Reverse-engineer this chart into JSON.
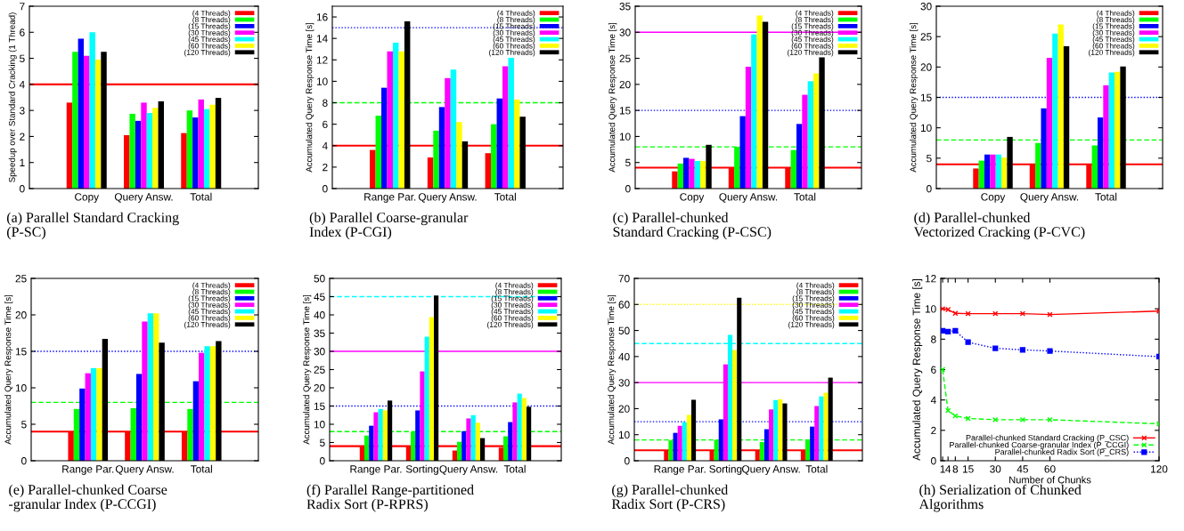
{
  "chart_data": [
    {
      "type": "bar",
      "title": "(a) Parallel Standard Cracking\n(P-SC)",
      "ylabel": "Speedup over Standard Cracking (1 Thread)",
      "categories": [
        "Copy",
        "Query Answ.",
        "Total"
      ],
      "ylim": [
        0,
        7
      ],
      "yticks": [
        0,
        1,
        2,
        3,
        4,
        5,
        6,
        7
      ],
      "legend": "top right",
      "series": [
        {
          "name": "(4 Threads)",
          "color": "#ff0000",
          "values": [
            3.3,
            2.05,
            2.13
          ]
        },
        {
          "name": "(8 Threads)",
          "color": "#00ff00",
          "values": [
            5.25,
            2.87,
            3.0
          ]
        },
        {
          "name": "(15 Threads)",
          "color": "#0000ff",
          "values": [
            5.75,
            2.6,
            2.73
          ]
        },
        {
          "name": "(30 Threads)",
          "color": "#ff00ff",
          "values": [
            5.1,
            3.3,
            3.42
          ]
        },
        {
          "name": "(45 Threads)",
          "color": "#00ffff",
          "values": [
            6.0,
            2.9,
            3.05
          ]
        },
        {
          "name": "(60 Threads)",
          "color": "#ffff00",
          "values": [
            4.95,
            3.1,
            3.22
          ]
        },
        {
          "name": "(120 Threads)",
          "color": "#000000",
          "values": [
            5.25,
            3.35,
            3.48
          ]
        }
      ],
      "ref_lines": [
        {
          "axis": "y",
          "value": 4,
          "color": "#ff0000",
          "line_style": "solid"
        }
      ]
    },
    {
      "type": "bar",
      "title": "(b) Parallel Coarse-granular\nIndex (P-CGI)",
      "ylabel": "Accumulated Query Response Time [s]",
      "categories": [
        "Range Par.",
        "Query Answ.",
        "Total"
      ],
      "ylim": [
        0,
        17
      ],
      "yticks": [
        0,
        2,
        4,
        6,
        8,
        10,
        12,
        14,
        16
      ],
      "legend": "top right",
      "series": [
        {
          "name": "(4 Threads)",
          "color": "#ff0000",
          "values": [
            3.6,
            2.9,
            3.3
          ]
        },
        {
          "name": "(8 Threads)",
          "color": "#00ff00",
          "values": [
            6.8,
            5.4,
            6.0
          ]
        },
        {
          "name": "(15 Threads)",
          "color": "#0000ff",
          "values": [
            9.4,
            7.6,
            8.4
          ]
        },
        {
          "name": "(30 Threads)",
          "color": "#ff00ff",
          "values": [
            12.8,
            10.3,
            11.4
          ]
        },
        {
          "name": "(45 Threads)",
          "color": "#00ffff",
          "values": [
            13.6,
            11.1,
            12.2
          ]
        },
        {
          "name": "(60 Threads)",
          "color": "#ffff00",
          "values": [
            12.8,
            6.2,
            8.3
          ]
        },
        {
          "name": "(120 Threads)",
          "color": "#000000",
          "values": [
            15.6,
            4.4,
            6.7
          ]
        }
      ],
      "ref_lines": [
        {
          "axis": "y",
          "value": 4,
          "color": "#ff0000",
          "line_style": "solid"
        },
        {
          "axis": "y",
          "value": 8,
          "color": "#00ff00",
          "line_style": "dashed"
        },
        {
          "axis": "y",
          "value": 15,
          "color": "#0000ff",
          "line_style": "dotted"
        }
      ]
    },
    {
      "type": "bar",
      "title": "(c) Parallel-chunked\nStandard Cracking (P-CSC)",
      "ylabel": "Accumulated Query Response Time [s]",
      "categories": [
        "Copy",
        "Query Answ.",
        "Total"
      ],
      "ylim": [
        0,
        35
      ],
      "yticks": [
        0,
        5,
        10,
        15,
        20,
        25,
        30,
        35
      ],
      "legend": "top right",
      "series": [
        {
          "name": "(4 Threads)",
          "color": "#ff0000",
          "values": [
            3.3,
            4.0,
            4.0
          ]
        },
        {
          "name": "(8 Threads)",
          "color": "#00ff00",
          "values": [
            4.8,
            8.0,
            7.4
          ]
        },
        {
          "name": "(15 Threads)",
          "color": "#0000ff",
          "values": [
            5.9,
            13.9,
            12.4
          ]
        },
        {
          "name": "(30 Threads)",
          "color": "#ff00ff",
          "values": [
            5.7,
            23.4,
            18.0
          ]
        },
        {
          "name": "(45 Threads)",
          "color": "#00ffff",
          "values": [
            5.3,
            29.6,
            20.6
          ]
        },
        {
          "name": "(60 Threads)",
          "color": "#ffff00",
          "values": [
            5.3,
            33.2,
            22.1
          ]
        },
        {
          "name": "(120 Threads)",
          "color": "#000000",
          "values": [
            8.4,
            32.0,
            25.2
          ]
        }
      ],
      "ref_lines": [
        {
          "axis": "y",
          "value": 4,
          "color": "#ff0000",
          "line_style": "solid"
        },
        {
          "axis": "y",
          "value": 8,
          "color": "#00ff00",
          "line_style": "dashed"
        },
        {
          "axis": "y",
          "value": 15,
          "color": "#0000ff",
          "line_style": "dotted"
        },
        {
          "axis": "y",
          "value": 30,
          "color": "#ff00ff",
          "line_style": "solid"
        }
      ]
    },
    {
      "type": "bar",
      "title": "(d) Parallel-chunked\nVectorized Cracking (P-CVC)",
      "ylabel": "Accumulated Query Response Time [s]",
      "categories": [
        "Copy",
        "Query Answ.",
        "Total"
      ],
      "ylim": [
        0,
        30
      ],
      "yticks": [
        0,
        5,
        10,
        15,
        20,
        25,
        30
      ],
      "legend": "top right",
      "series": [
        {
          "name": "(4 Threads)",
          "color": "#ff0000",
          "values": [
            3.3,
            4.0,
            4.0
          ]
        },
        {
          "name": "(8 Threads)",
          "color": "#00ff00",
          "values": [
            4.6,
            7.5,
            7.1
          ]
        },
        {
          "name": "(15 Threads)",
          "color": "#0000ff",
          "values": [
            5.6,
            13.2,
            11.7
          ]
        },
        {
          "name": "(30 Threads)",
          "color": "#ff00ff",
          "values": [
            5.6,
            21.5,
            17.0
          ]
        },
        {
          "name": "(45 Threads)",
          "color": "#00ffff",
          "values": [
            5.6,
            25.5,
            19.1
          ]
        },
        {
          "name": "(60 Threads)",
          "color": "#ffff00",
          "values": [
            5.1,
            27.0,
            19.2
          ]
        },
        {
          "name": "(120 Threads)",
          "color": "#000000",
          "values": [
            8.5,
            23.4,
            20.1
          ]
        }
      ],
      "ref_lines": [
        {
          "axis": "y",
          "value": 4,
          "color": "#ff0000",
          "line_style": "solid"
        },
        {
          "axis": "y",
          "value": 8,
          "color": "#00ff00",
          "line_style": "dashed"
        },
        {
          "axis": "y",
          "value": 15,
          "color": "#0000ff",
          "line_style": "dotted"
        }
      ]
    },
    {
      "type": "bar",
      "title": "(e) Parallel-chunked Coarse\n-granular Index (P-CCGI)",
      "ylabel": "Accumulated Query Response Time [s]",
      "categories": [
        "Range Par.",
        "Query Answ.",
        "Total"
      ],
      "ylim": [
        0,
        25
      ],
      "yticks": [
        0,
        5,
        10,
        15,
        20,
        25
      ],
      "legend": "top right",
      "series": [
        {
          "name": "(4 Threads)",
          "color": "#ff0000",
          "values": [
            3.9,
            3.9,
            3.9
          ]
        },
        {
          "name": "(8 Threads)",
          "color": "#00ff00",
          "values": [
            7.1,
            7.2,
            7.1
          ]
        },
        {
          "name": "(15 Threads)",
          "color": "#0000ff",
          "values": [
            9.9,
            11.9,
            10.9
          ]
        },
        {
          "name": "(30 Threads)",
          "color": "#ff00ff",
          "values": [
            12.0,
            19.1,
            14.8
          ]
        },
        {
          "name": "(45 Threads)",
          "color": "#00ffff",
          "values": [
            12.7,
            20.2,
            15.7
          ]
        },
        {
          "name": "(60 Threads)",
          "color": "#ffff00",
          "values": [
            12.7,
            20.2,
            15.7
          ]
        },
        {
          "name": "(120 Threads)",
          "color": "#000000",
          "values": [
            16.7,
            16.2,
            16.4
          ]
        }
      ],
      "ref_lines": [
        {
          "axis": "y",
          "value": 4,
          "color": "#ff0000",
          "line_style": "solid"
        },
        {
          "axis": "y",
          "value": 8,
          "color": "#00ff00",
          "line_style": "dashed"
        },
        {
          "axis": "y",
          "value": 15,
          "color": "#0000ff",
          "line_style": "dotted"
        }
      ]
    },
    {
      "type": "bar",
      "title": "(f) Parallel Range-partitioned\nRadix Sort (P-RPRS)",
      "ylabel": "Accumulated Query Response Time [s]",
      "categories": [
        "Range Par.",
        "Sorting",
        "Query Answ.",
        "Total"
      ],
      "ylim": [
        0,
        50
      ],
      "yticks": [
        0,
        5,
        10,
        15,
        20,
        25,
        30,
        35,
        40,
        45,
        50
      ],
      "legend": "top right",
      "series": [
        {
          "name": "(4 Threads)",
          "color": "#ff0000",
          "values": [
            4.0,
            4.1,
            2.8,
            3.6
          ]
        },
        {
          "name": "(8 Threads)",
          "color": "#00ff00",
          "values": [
            6.9,
            7.8,
            5.2,
            6.7
          ]
        },
        {
          "name": "(15 Threads)",
          "color": "#0000ff",
          "values": [
            9.6,
            13.8,
            8.1,
            10.6
          ]
        },
        {
          "name": "(30 Threads)",
          "color": "#ff00ff",
          "values": [
            13.3,
            24.5,
            11.6,
            16.0
          ]
        },
        {
          "name": "(45 Threads)",
          "color": "#00ffff",
          "values": [
            14.2,
            34.0,
            12.5,
            18.4
          ]
        },
        {
          "name": "(60 Threads)",
          "color": "#ffff00",
          "values": [
            13.8,
            39.4,
            10.4,
            17.2
          ]
        },
        {
          "name": "(120 Threads)",
          "color": "#000000",
          "values": [
            16.5,
            45.3,
            6.2,
            14.8
          ]
        }
      ],
      "ref_lines": [
        {
          "axis": "y",
          "value": 4,
          "color": "#ff0000",
          "line_style": "solid"
        },
        {
          "axis": "y",
          "value": 8,
          "color": "#00ff00",
          "line_style": "dashed"
        },
        {
          "axis": "y",
          "value": 15,
          "color": "#0000ff",
          "line_style": "dotted"
        },
        {
          "axis": "y",
          "value": 30,
          "color": "#ff00ff",
          "line_style": "solid"
        },
        {
          "axis": "y",
          "value": 45,
          "color": "#00ffff",
          "line_style": "dashed"
        }
      ]
    },
    {
      "type": "bar",
      "title": "(g) Parallel-chunked\nRadix Sort (P-CRS)",
      "ylabel": "Accumulated Query Response Time [s]",
      "categories": [
        "Range Par.",
        "Sorting",
        "Query Answ.",
        "Total"
      ],
      "ylim": [
        0,
        70
      ],
      "yticks": [
        0,
        10,
        20,
        30,
        40,
        50,
        60,
        70
      ],
      "legend": "top right",
      "series": [
        {
          "name": "(4 Threads)",
          "color": "#ff0000",
          "values": [
            4.0,
            4.1,
            4.0,
            4.0
          ]
        },
        {
          "name": "(8 Threads)",
          "color": "#00ff00",
          "values": [
            7.8,
            8.0,
            7.2,
            7.8
          ]
        },
        {
          "name": "(15 Threads)",
          "color": "#0000ff",
          "values": [
            10.7,
            15.9,
            12.1,
            13.1
          ]
        },
        {
          "name": "(30 Threads)",
          "color": "#ff00ff",
          "values": [
            13.4,
            37.0,
            19.7,
            21.0
          ]
        },
        {
          "name": "(45 Threads)",
          "color": "#00ffff",
          "values": [
            14.8,
            48.3,
            23.3,
            24.7
          ]
        },
        {
          "name": "(60 Threads)",
          "color": "#ffff00",
          "values": [
            17.6,
            42.5,
            23.6,
            26.1
          ]
        },
        {
          "name": "(120 Threads)",
          "color": "#000000",
          "values": [
            23.4,
            62.6,
            22.0,
            31.9
          ]
        }
      ],
      "ref_lines": [
        {
          "axis": "y",
          "value": 4,
          "color": "#ff0000",
          "line_style": "solid"
        },
        {
          "axis": "y",
          "value": 8,
          "color": "#00ff00",
          "line_style": "dashed"
        },
        {
          "axis": "y",
          "value": 15,
          "color": "#0000ff",
          "line_style": "dotted"
        },
        {
          "axis": "y",
          "value": 30,
          "color": "#ff00ff",
          "line_style": "solid"
        },
        {
          "axis": "y",
          "value": 45,
          "color": "#00ffff",
          "line_style": "dashed"
        },
        {
          "axis": "y",
          "value": 60,
          "color": "#ffff00",
          "line_style": "dotted"
        }
      ]
    },
    {
      "type": "line",
      "title": "(h) Serialization of Chunked\nAlgorithms",
      "ylabel": "Accumulated Query Response Time [s]",
      "xlabel": "Number of Chunks",
      "x": [
        1,
        4,
        8,
        15,
        30,
        45,
        60,
        120
      ],
      "xlim": [
        0,
        120
      ],
      "xticks": [
        1,
        4,
        8,
        15,
        30,
        45,
        60,
        120
      ],
      "ylim": [
        0,
        12
      ],
      "yticks": [
        0,
        2,
        4,
        6,
        8,
        10,
        12
      ],
      "legend": "bottom right",
      "series": [
        {
          "name": "Parallel-chunked Standard Cracking (P_CSC)",
          "color": "#ff0000",
          "marker": "cross",
          "line_style": "solid",
          "values": [
            10.0,
            9.95,
            9.7,
            9.68,
            9.68,
            9.68,
            9.62,
            9.85
          ]
        },
        {
          "name": "Parallel-chunked Coarse-granular Index (P_CCGI)",
          "color": "#00ff00",
          "marker": "cross",
          "line_style": "dashed",
          "values": [
            6.0,
            3.3,
            2.95,
            2.78,
            2.7,
            2.7,
            2.7,
            2.43
          ]
        },
        {
          "name": "Parallel-chunked Radix Sort (P_CRS)",
          "color": "#0000ff",
          "marker": "square",
          "line_style": "dotted",
          "values": [
            8.55,
            8.5,
            8.55,
            7.8,
            7.4,
            7.3,
            7.22,
            6.85
          ]
        }
      ]
    }
  ]
}
